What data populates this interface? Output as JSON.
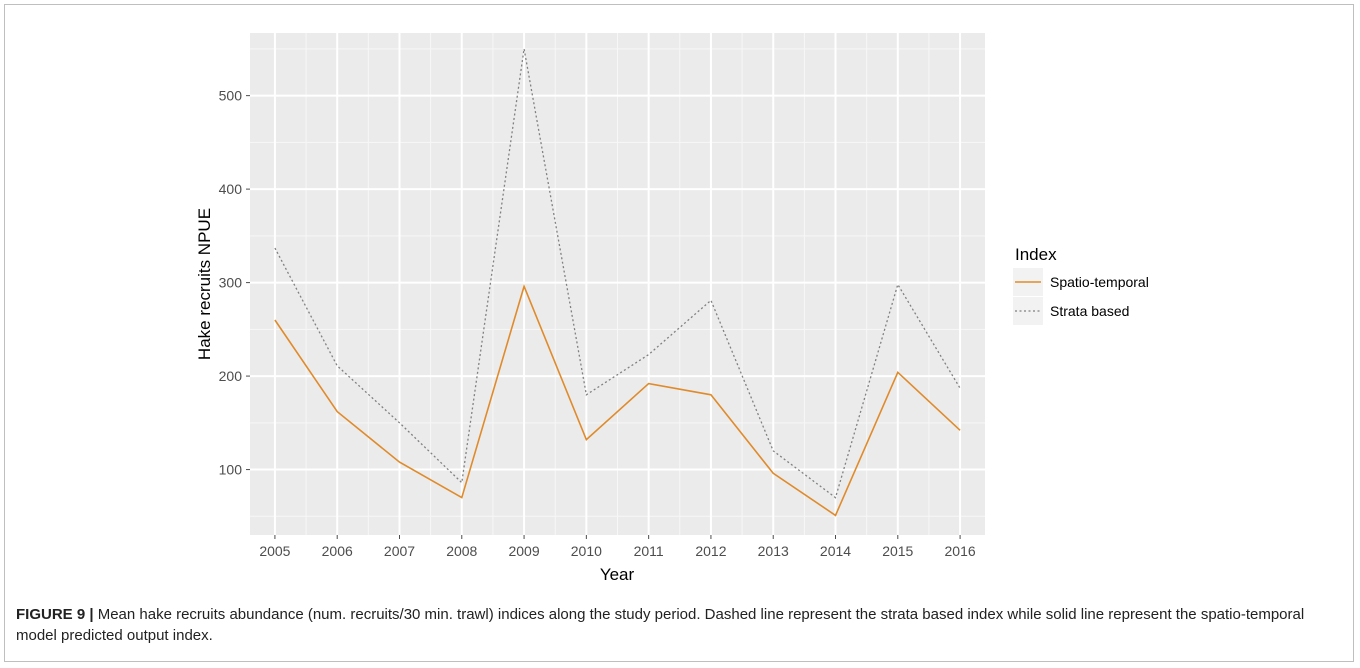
{
  "figure": {
    "caption_label": "FIGURE 9 |",
    "caption_text": " Mean hake recruits abundance (num. recruits/30 min. trawl) indices along the study period. Dashed line represent the strata based index while solid line represent the spatio-temporal model predicted output index."
  },
  "chart_data": {
    "type": "line",
    "xlabel": "Year",
    "ylabel": "Hake recruits NPUE",
    "x": [
      2005,
      2006,
      2007,
      2008,
      2009,
      2010,
      2011,
      2012,
      2013,
      2014,
      2015,
      2016
    ],
    "xlim": [
      2004.6,
      2016.4
    ],
    "ylim": [
      30,
      567
    ],
    "yticks": [
      100,
      200,
      300,
      400,
      500
    ],
    "grid": true,
    "legend": {
      "title": "Index",
      "placement": "right"
    },
    "series": [
      {
        "name": "Spatio-temporal",
        "color": "#e08b2b",
        "dash": "solid",
        "values": [
          260,
          162,
          108,
          70,
          296,
          132,
          192,
          180,
          96,
          51,
          204,
          142
        ]
      },
      {
        "name": "Strata based",
        "color": "#808080",
        "dash": "dotted",
        "values": [
          337,
          211,
          150,
          86,
          550,
          180,
          223,
          281,
          120,
          70,
          298,
          187
        ]
      }
    ]
  }
}
